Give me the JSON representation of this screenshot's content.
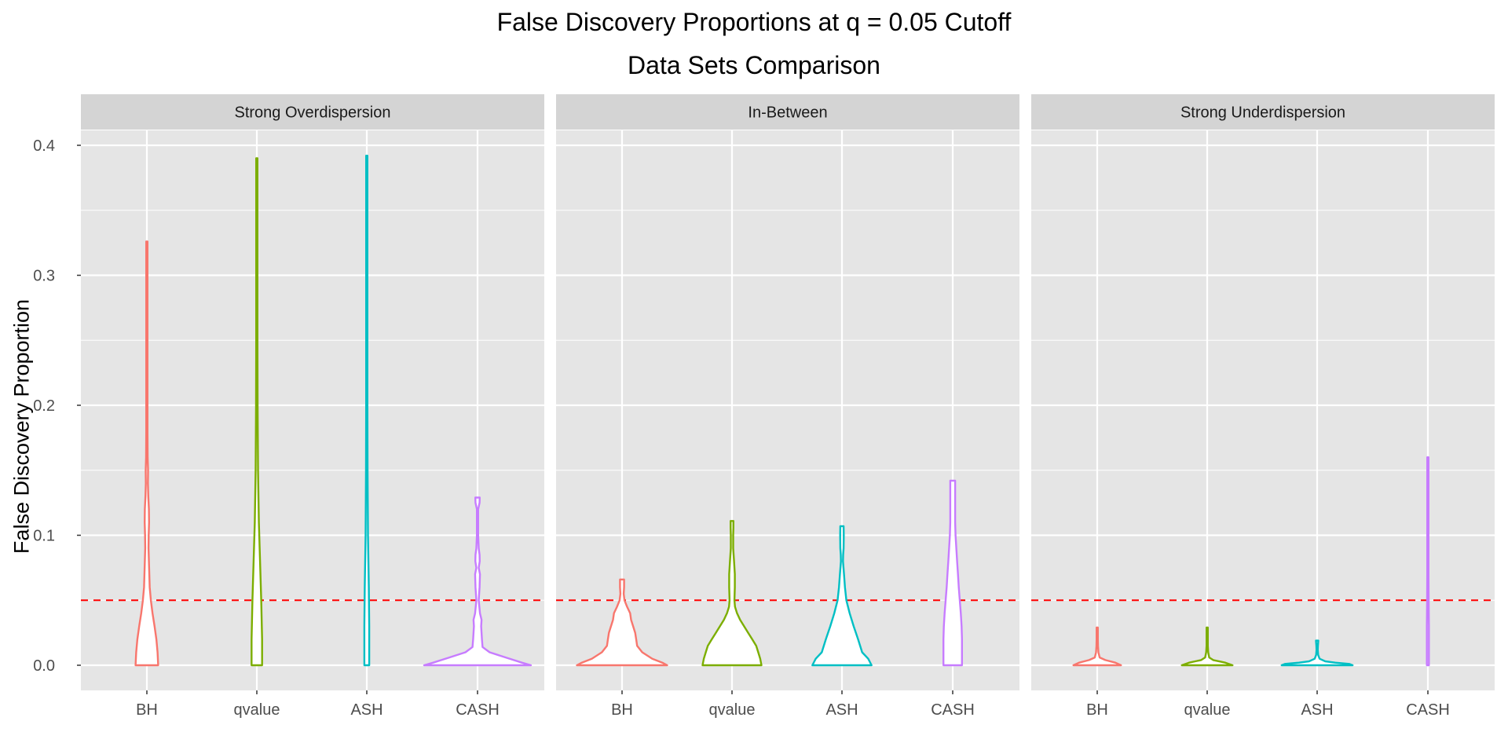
{
  "title": "False Discovery Proportions at q = 0.05 Cutoff",
  "subtitle": "Data Sets Comparison",
  "ylabel": "False Discovery Proportion",
  "colors": {
    "BH": "#F8766D",
    "qvalue": "#7CAE00",
    "ASH": "#00BFC4",
    "CASH": "#C77CFF",
    "reference_line": "#FF0000",
    "panel_background": "#E5E5E5",
    "strip_background": "#D4D4D4",
    "grid": "#FFFFFF"
  },
  "chart_data": {
    "type": "violin",
    "title": "False Discovery Proportions at q = 0.05 Cutoff",
    "subtitle": "Data Sets Comparison",
    "ylabel": "False Discovery Proportion",
    "xlabel": "",
    "categories": [
      "BH",
      "qvalue",
      "ASH",
      "CASH"
    ],
    "ylim": [
      -0.02,
      0.415
    ],
    "yticks": [
      "0.0",
      "0.1",
      "0.2",
      "0.3",
      "0.4"
    ],
    "ytick_values": [
      0,
      0.1,
      0.2,
      0.3,
      0.4
    ],
    "reference_line": {
      "y": 0.05,
      "style": "dashed"
    },
    "grid": true,
    "legend": "none",
    "facets": [
      {
        "label": "Strong Overdispersion",
        "violins": [
          {
            "category": "BH",
            "min": 0,
            "max": 0.326,
            "profile": [
              [
                0,
                0.056
              ],
              [
                0.01,
                0.053
              ],
              [
                0.02,
                0.047
              ],
              [
                0.03,
                0.038
              ],
              [
                0.04,
                0.028
              ],
              [
                0.05,
                0.02
              ],
              [
                0.06,
                0.014
              ],
              [
                0.07,
                0.012
              ],
              [
                0.08,
                0.01
              ],
              [
                0.09,
                0.008
              ],
              [
                0.1,
                0.009
              ],
              [
                0.11,
                0.011
              ],
              [
                0.12,
                0.01
              ],
              [
                0.13,
                0.007
              ],
              [
                0.14,
                0.005
              ],
              [
                0.15,
                0.006
              ],
              [
                0.16,
                0.004
              ],
              [
                0.18,
                0.002
              ],
              [
                0.22,
                0.0015
              ],
              [
                0.28,
                0.0015
              ],
              [
                0.3,
                0.0025
              ],
              [
                0.326,
                0.003
              ]
            ]
          },
          {
            "category": "qvalue",
            "min": 0,
            "max": 0.39,
            "profile": [
              [
                0,
                0.026
              ],
              [
                0.02,
                0.026
              ],
              [
                0.05,
                0.022
              ],
              [
                0.08,
                0.016
              ],
              [
                0.11,
                0.01
              ],
              [
                0.15,
                0.006
              ],
              [
                0.2,
                0.004
              ],
              [
                0.25,
                0.003
              ],
              [
                0.3,
                0.002
              ],
              [
                0.35,
                0.002
              ],
              [
                0.39,
                0.002
              ]
            ]
          },
          {
            "category": "ASH",
            "min": 0,
            "max": 0.392,
            "profile": [
              [
                0,
                0.012
              ],
              [
                0.03,
                0.012
              ],
              [
                0.06,
                0.01
              ],
              [
                0.1,
                0.006
              ],
              [
                0.15,
                0.004
              ],
              [
                0.2,
                0.003
              ],
              [
                0.25,
                0.003
              ],
              [
                0.3,
                0.002
              ],
              [
                0.35,
                0.002
              ],
              [
                0.392,
                0.002
              ]
            ]
          },
          {
            "category": "CASH",
            "min": 0,
            "max": 0.129,
            "profile": [
              [
                0,
                0.265
              ],
              [
                0.002,
                0.22
              ],
              [
                0.006,
                0.14
              ],
              [
                0.01,
                0.06
              ],
              [
                0.014,
                0.025
              ],
              [
                0.02,
                0.022
              ],
              [
                0.03,
                0.018
              ],
              [
                0.035,
                0.02
              ],
              [
                0.04,
                0.012
              ],
              [
                0.05,
                0.006
              ],
              [
                0.06,
                0.01
              ],
              [
                0.07,
                0.012
              ],
              [
                0.075,
                0.006
              ],
              [
                0.08,
                0.011
              ],
              [
                0.085,
                0.01
              ],
              [
                0.09,
                0.006
              ],
              [
                0.1,
                0.003
              ],
              [
                0.11,
                0.002
              ],
              [
                0.12,
                0.003
              ],
              [
                0.125,
                0.01
              ],
              [
                0.129,
                0.011
              ]
            ]
          }
        ]
      },
      {
        "label": "In-Between",
        "violins": [
          {
            "category": "BH",
            "min": 0,
            "max": 0.066,
            "profile": [
              [
                0,
                0.224
              ],
              [
                0.002,
                0.2
              ],
              [
                0.005,
                0.15
              ],
              [
                0.01,
                0.1
              ],
              [
                0.015,
                0.075
              ],
              [
                0.02,
                0.07
              ],
              [
                0.025,
                0.065
              ],
              [
                0.03,
                0.055
              ],
              [
                0.035,
                0.045
              ],
              [
                0.04,
                0.04
              ],
              [
                0.045,
                0.025
              ],
              [
                0.05,
                0.012
              ],
              [
                0.055,
                0.008
              ],
              [
                0.06,
                0.01
              ],
              [
                0.066,
                0.01
              ]
            ]
          },
          {
            "category": "qvalue",
            "min": 0,
            "max": 0.111,
            "profile": [
              [
                0,
                0.146
              ],
              [
                0.005,
                0.14
              ],
              [
                0.01,
                0.13
              ],
              [
                0.015,
                0.12
              ],
              [
                0.02,
                0.1
              ],
              [
                0.025,
                0.08
              ],
              [
                0.03,
                0.06
              ],
              [
                0.035,
                0.04
              ],
              [
                0.04,
                0.025
              ],
              [
                0.045,
                0.015
              ],
              [
                0.05,
                0.012
              ],
              [
                0.06,
                0.014
              ],
              [
                0.07,
                0.014
              ],
              [
                0.08,
                0.01
              ],
              [
                0.09,
                0.006
              ],
              [
                0.1,
                0.006
              ],
              [
                0.106,
                0.007
              ],
              [
                0.111,
                0.007
              ]
            ]
          },
          {
            "category": "ASH",
            "min": 0,
            "max": 0.107,
            "profile": [
              [
                0,
                0.147
              ],
              [
                0.005,
                0.13
              ],
              [
                0.01,
                0.1
              ],
              [
                0.02,
                0.08
              ],
              [
                0.03,
                0.058
              ],
              [
                0.04,
                0.038
              ],
              [
                0.05,
                0.022
              ],
              [
                0.06,
                0.015
              ],
              [
                0.07,
                0.01
              ],
              [
                0.08,
                0.005
              ],
              [
                0.085,
                0.006
              ],
              [
                0.09,
                0.008
              ],
              [
                0.1,
                0.009
              ],
              [
                0.107,
                0.008
              ]
            ]
          },
          {
            "category": "CASH",
            "min": 0,
            "max": 0.142,
            "profile": [
              [
                0,
                0.046
              ],
              [
                0.01,
                0.046
              ],
              [
                0.02,
                0.046
              ],
              [
                0.03,
                0.044
              ],
              [
                0.04,
                0.04
              ],
              [
                0.05,
                0.035
              ],
              [
                0.06,
                0.03
              ],
              [
                0.07,
                0.026
              ],
              [
                0.08,
                0.022
              ],
              [
                0.09,
                0.018
              ],
              [
                0.1,
                0.014
              ],
              [
                0.11,
                0.012
              ],
              [
                0.12,
                0.012
              ],
              [
                0.13,
                0.012
              ],
              [
                0.142,
                0.012
              ]
            ]
          }
        ]
      },
      {
        "label": "Strong Underdispersion",
        "violins": [
          {
            "category": "BH",
            "min": 0,
            "max": 0.029,
            "profile": [
              [
                0,
                0.118
              ],
              [
                0.002,
                0.09
              ],
              [
                0.004,
                0.04
              ],
              [
                0.006,
                0.012
              ],
              [
                0.01,
                0.006
              ],
              [
                0.015,
                0.004
              ],
              [
                0.02,
                0.002
              ],
              [
                0.025,
                0.003
              ],
              [
                0.029,
                0.003
              ]
            ]
          },
          {
            "category": "qvalue",
            "min": 0,
            "max": 0.029,
            "profile": [
              [
                0,
                0.126
              ],
              [
                0.002,
                0.09
              ],
              [
                0.004,
                0.03
              ],
              [
                0.006,
                0.01
              ],
              [
                0.01,
                0.005
              ],
              [
                0.015,
                0.003
              ],
              [
                0.02,
                0.002
              ],
              [
                0.025,
                0.003
              ],
              [
                0.029,
                0.003
              ]
            ]
          },
          {
            "category": "ASH",
            "min": 0,
            "max": 0.019,
            "profile": [
              [
                0,
                0.176
              ],
              [
                0.001,
                0.16
              ],
              [
                0.002,
                0.09
              ],
              [
                0.003,
                0.04
              ],
              [
                0.005,
                0.012
              ],
              [
                0.008,
                0.005
              ],
              [
                0.012,
                0.003
              ],
              [
                0.015,
                0.004
              ],
              [
                0.019,
                0.006
              ]
            ]
          },
          {
            "category": "CASH",
            "min": 0,
            "max": 0.16,
            "profile": [
              [
                0,
                0.005
              ],
              [
                0.03,
                0.005
              ],
              [
                0.05,
                0.004
              ],
              [
                0.07,
                0.003
              ],
              [
                0.1,
                0.002
              ],
              [
                0.13,
                0.0015
              ],
              [
                0.16,
                0.0015
              ]
            ]
          }
        ]
      }
    ]
  }
}
